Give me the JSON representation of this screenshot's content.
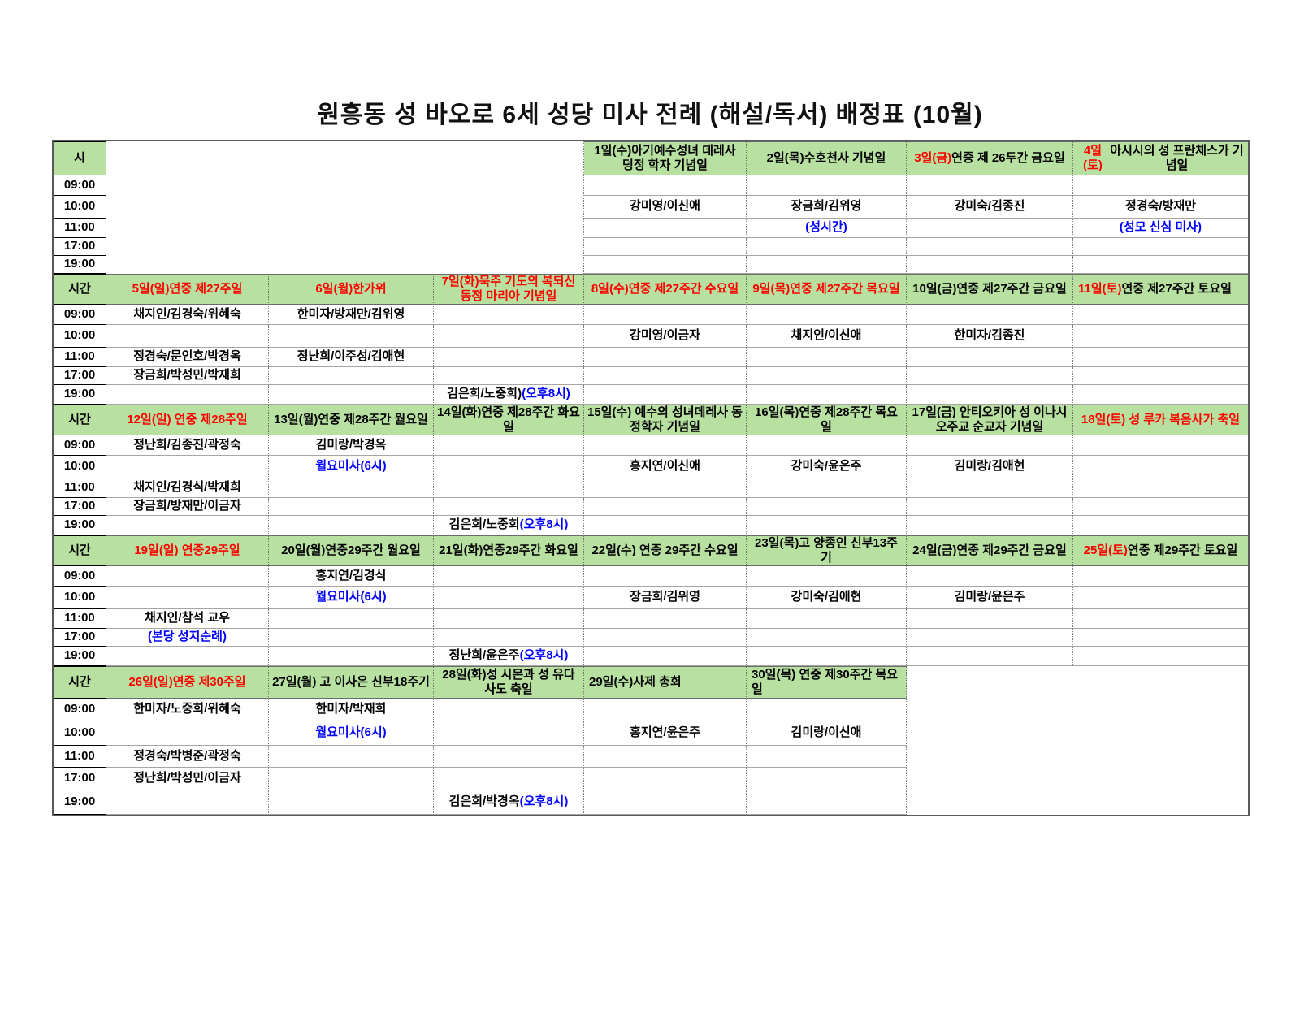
{
  "title": "원흥동 성 바오로 6세 성당 미사 전례 (해설/독서) 배정표 (10월)",
  "colors": {
    "header_green": "#b7e0a1",
    "red": "#ff0000",
    "blue": "#0000ff",
    "grid_gray": "#a6a6a6"
  },
  "time_col_headers": [
    "시",
    "시간",
    "시간",
    "시간",
    "시간"
  ],
  "times": [
    "09:00",
    "10:00",
    "11:00",
    "17:00",
    "19:00"
  ],
  "weeks": [
    {
      "empty": {
        "start": 0,
        "count": 3
      },
      "days": [
        null,
        null,
        null,
        {
          "header": [
            {
              "t": "1일(수)아기예수성녀 데레사 덩정 학자 기념일",
              "c": "black"
            }
          ],
          "cells": {
            "10:00": [
              {
                "t": "강미영/이신애",
                "c": "black"
              }
            ]
          }
        },
        {
          "header": [
            {
              "t": "2일(목)수호천사 기념일",
              "c": "black"
            }
          ],
          "cells": {
            "10:00": [
              {
                "t": "장금희/김위영",
                "c": "black"
              }
            ],
            "11:00": [
              {
                "t": "(성시간)",
                "c": "blue"
              }
            ]
          }
        },
        {
          "header": [
            {
              "t": "3일(금)",
              "c": "red"
            },
            {
              "t": "연중 제 26두간 금요일",
              "c": "black"
            }
          ],
          "cells": {
            "10:00": [
              {
                "t": "강미숙/김종진",
                "c": "black"
              }
            ]
          }
        },
        {
          "header": [
            {
              "t": "4일(토)",
              "c": "red"
            },
            {
              "t": "아시시의 성 프란체스가 기념일",
              "c": "black"
            }
          ],
          "cells": {
            "10:00": [
              {
                "t": "정경숙/방재만",
                "c": "black"
              }
            ],
            "11:00": [
              {
                "t": "(성모 신심 미사)",
                "c": "blue"
              }
            ]
          }
        }
      ]
    },
    {
      "empty": null,
      "days": [
        {
          "header": [
            {
              "t": "5일(일)연중 제27주일",
              "c": "red"
            }
          ],
          "cells": {
            "09:00": [
              {
                "t": "채지인/김경숙/위혜숙",
                "c": "black"
              }
            ],
            "11:00": [
              {
                "t": "정경숙/문인호/박경옥",
                "c": "black"
              }
            ],
            "17:00": [
              {
                "t": "장금희/박성민/박재희",
                "c": "black"
              }
            ]
          }
        },
        {
          "header": [
            {
              "t": "6일(월)한가위",
              "c": "red"
            }
          ],
          "cells": {
            "09:00": [
              {
                "t": "한미자/방재만/김위영",
                "c": "black"
              }
            ],
            "11:00": [
              {
                "t": "정난희/이주성/김애현",
                "c": "black"
              }
            ]
          }
        },
        {
          "header": [
            {
              "t": "7일(화)묵주 기도의 복되신 동정 마리아 기념일",
              "c": "red"
            }
          ],
          "cells": {
            "19:00": [
              {
                "t": "김은희/노중희)",
                "c": "black"
              },
              {
                "t": "(오후8시)",
                "c": "blue"
              }
            ]
          }
        },
        {
          "header": [
            {
              "t": "8일(수)연중 제27주간 수요일",
              "c": "red"
            }
          ],
          "cells": {
            "10:00": [
              {
                "t": "강미영/이금자",
                "c": "black"
              }
            ]
          }
        },
        {
          "header": [
            {
              "t": "9일(목)연중 제27주간  목요일",
              "c": "red"
            }
          ],
          "cells": {
            "10:00": [
              {
                "t": "채지인/이신애",
                "c": "black"
              }
            ]
          }
        },
        {
          "header": [
            {
              "t": "10일(금)연중 제27주간 금요일",
              "c": "black"
            }
          ],
          "cells": {
            "10:00": [
              {
                "t": "한미자/김종진",
                "c": "black"
              }
            ]
          }
        },
        {
          "header": [
            {
              "t": "11일(토)",
              "c": "red"
            },
            {
              "t": "연중  제27주간  토요일",
              "c": "black"
            }
          ],
          "align": "left",
          "cells": {}
        }
      ]
    },
    {
      "empty": null,
      "days": [
        {
          "header": [
            {
              "t": "12일(일) 연중 제28주일",
              "c": "red"
            }
          ],
          "cells": {
            "09:00": [
              {
                "t": "정난희/김종진/곽정숙",
                "c": "black"
              }
            ],
            "11:00": [
              {
                "t": "채지인/김경식/박재희",
                "c": "black"
              }
            ],
            "17:00": [
              {
                "t": "장금희/방재만/이금자",
                "c": "black"
              }
            ]
          }
        },
        {
          "header": [
            {
              "t": "13일(월)연중 제28주간 월요일",
              "c": "black"
            }
          ],
          "cells": {
            "09:00": [
              {
                "t": "김미랑/박경옥",
                "c": "black"
              }
            ],
            "10:00": [
              {
                "t": "월요미사(6시)",
                "c": "blue"
              }
            ]
          }
        },
        {
          "header": [
            {
              "t": "14일(화)연중 제28주간 화요일",
              "c": "black"
            }
          ],
          "cells": {
            "19:00": [
              {
                "t": "김은희/노중희",
                "c": "black"
              },
              {
                "t": "(오후8시)",
                "c": "blue"
              }
            ]
          }
        },
        {
          "header": [
            {
              "t": "15일(수) 예수의 성녀데레사 동정학자 기념일",
              "c": "black"
            }
          ],
          "cells": {
            "10:00": [
              {
                "t": "홍지연/이신애",
                "c": "black"
              }
            ]
          }
        },
        {
          "header": [
            {
              "t": "16일(목)연중 제28주간 목요일",
              "c": "black"
            }
          ],
          "cells": {
            "10:00": [
              {
                "t": "강미숙/윤은주",
                "c": "black"
              }
            ]
          }
        },
        {
          "header": [
            {
              "t": "17일(금) 안티오키아 성 이나시오주교 순교자 기념일",
              "c": "black"
            }
          ],
          "cells": {
            "10:00": [
              {
                "t": "김미랑/김애현",
                "c": "black"
              }
            ]
          }
        },
        {
          "header": [
            {
              "t": "18일(토) 성 루카 복음사가 축일",
              "c": "red"
            }
          ],
          "cells": {}
        }
      ]
    },
    {
      "empty": null,
      "days": [
        {
          "header": [
            {
              "t": "19일(일) 연중29주일",
              "c": "red"
            }
          ],
          "cells": {
            "11:00": [
              {
                "t": "채지인/참석 교우",
                "c": "black"
              }
            ],
            "17:00": [
              {
                "t": "(본당 성지순례)",
                "c": "blue"
              }
            ]
          }
        },
        {
          "header": [
            {
              "t": "20일(월)연중29주간 월요일",
              "c": "black"
            }
          ],
          "cells": {
            "09:00": [
              {
                "t": "홍지연/김경식",
                "c": "black"
              }
            ],
            "10:00": [
              {
                "t": "월요미사(6시)",
                "c": "blue"
              }
            ]
          }
        },
        {
          "header": [
            {
              "t": "21일(화)연중29주간 화요일",
              "c": "black"
            }
          ],
          "cells": {
            "19:00": [
              {
                "t": "정난희/윤은주",
                "c": "black"
              },
              {
                "t": "(오후8시)",
                "c": "blue"
              }
            ]
          }
        },
        {
          "header": [
            {
              "t": "22일(수) 연중  29주간 수요일",
              "c": "black"
            }
          ],
          "cells": {
            "10:00": [
              {
                "t": "장금희/김위영",
                "c": "black"
              }
            ]
          }
        },
        {
          "header": [
            {
              "t": "23일(목)고 양종인 신부13주기",
              "c": "black"
            }
          ],
          "cells": {
            "10:00": [
              {
                "t": "강미숙/김애현",
                "c": "black"
              }
            ]
          }
        },
        {
          "header": [
            {
              "t": "24일(금)연중 제29주간 금요일",
              "c": "black"
            }
          ],
          "cells": {
            "10:00": [
              {
                "t": "김미랑/윤은주",
                "c": "black"
              }
            ]
          }
        },
        {
          "header": [
            {
              "t": "25일(토)",
              "c": "red"
            },
            {
              "t": " 연중 제29주간 토요일",
              "c": "black"
            }
          ],
          "cells": {}
        }
      ]
    },
    {
      "empty": {
        "start": 5,
        "count": 2
      },
      "days": [
        {
          "header": [
            {
              "t": "26일(일)연중 제30주일",
              "c": "red"
            }
          ],
          "cells": {
            "09:00": [
              {
                "t": "한미자/노중희/위혜숙",
                "c": "black"
              }
            ],
            "11:00": [
              {
                "t": "정경숙/박병준/곽정숙",
                "c": "black"
              }
            ],
            "17:00": [
              {
                "t": "정난희/박성민/이금자",
                "c": "black"
              }
            ]
          }
        },
        {
          "header": [
            {
              "t": "27일(월) 고 이사은 신부18주기",
              "c": "black"
            }
          ],
          "cells": {
            "09:00": [
              {
                "t": "한미자/박재희",
                "c": "black"
              }
            ],
            "10:00": [
              {
                "t": "월요미사(6시)",
                "c": "blue"
              }
            ]
          }
        },
        {
          "header": [
            {
              "t": "28일(화)성 시몬과 성 유다 사도 축일",
              "c": "black"
            }
          ],
          "cells": {
            "19:00": [
              {
                "t": "김은희/박경옥",
                "c": "black"
              },
              {
                "t": "(오후8시)",
                "c": "blue"
              }
            ]
          }
        },
        {
          "header": [
            {
              "t": "29일(수)사제 총회",
              "c": "black"
            }
          ],
          "align": "left",
          "cells": {
            "10:00": [
              {
                "t": "홍지연/윤은주",
                "c": "black"
              }
            ]
          }
        },
        {
          "header": [
            {
              "t": "30일(목)  연중  제30주간  목요일",
              "c": "black"
            }
          ],
          "align": "left",
          "cells": {
            "10:00": [
              {
                "t": "김미랑/이신애",
                "c": "black"
              }
            ]
          }
        },
        null,
        null
      ]
    }
  ]
}
